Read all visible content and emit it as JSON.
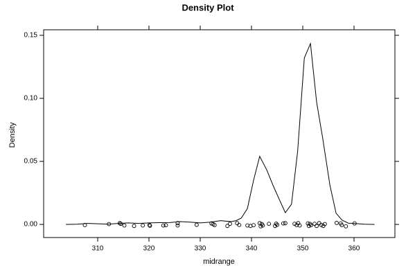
{
  "chart_data": {
    "type": "density",
    "title": "Density Plot",
    "x_label": "midrange",
    "y_label": "Density",
    "color": "#000000",
    "xlim": [
      299.46,
      367.97
    ],
    "ylim": [
      -0.0104,
      0.1544
    ],
    "xticks": [
      310,
      320,
      330,
      340,
      350,
      360
    ],
    "yticks": [
      {
        "value": 0,
        "label": "0.00"
      },
      0.05,
      {
        "value": 0.1,
        "label": "0.10"
      },
      0.15
    ],
    "line": {
      "x": [
        303.8,
        306,
        308,
        310,
        312,
        314,
        316,
        318,
        320,
        322,
        324,
        326,
        328,
        330,
        332,
        334,
        336,
        337,
        338,
        339.2,
        340.4,
        341.6,
        343,
        344.2,
        345.4,
        346.6,
        347.8,
        349,
        350.3,
        351.5,
        352.7,
        353.9,
        355.3,
        356.5,
        357.7,
        358.9,
        360,
        362,
        364
      ],
      "y": [
        0,
        0.0002,
        0.0008,
        0.0005,
        0.0002,
        0.0008,
        0.0012,
        0.0008,
        0.0012,
        0.0014,
        0.0015,
        0.0022,
        0.0018,
        0.0012,
        0.0018,
        0.003,
        0.0022,
        0.003,
        0.005,
        0.0126,
        0.035,
        0.054,
        0.043,
        0.031,
        0.02,
        0.0093,
        0.016,
        0.058,
        0.132,
        0.1435,
        0.097,
        0.068,
        0.031,
        0.0088,
        0.0033,
        0.001,
        0.0008,
        0.0002,
        0
      ]
    },
    "points": {
      "x": [
        307.5,
        312.2,
        314.3,
        314.5,
        315.2,
        317.1,
        318.8,
        320.1,
        320.2,
        322.8,
        323.3,
        325.6,
        325.6,
        329.3,
        332.2,
        332.5,
        332.8,
        335.3,
        335.8,
        337.2,
        337.6,
        339.2,
        339.8,
        340.4,
        341.6,
        341.8,
        342.0,
        342.2,
        343.4,
        344.6,
        344.8,
        345.0,
        346.2,
        346.6,
        348.4,
        348.8,
        349.1,
        349.4,
        351.0,
        351.2,
        351.4,
        351.6,
        352.3,
        352.7,
        353.2,
        353.6,
        354.0,
        354.3,
        356.6,
        357.4,
        357.6,
        358.4,
        360.1
      ],
      "y": [
        -0.0005,
        0.0003,
        0.001,
        0.0005,
        -0.0008,
        -0.0012,
        -0.0008,
        -0.0005,
        -0.001,
        -0.0008,
        -0.0006,
        0.001,
        -0.0008,
        -0.0003,
        0.0008,
        0.0002,
        -0.0005,
        -0.0012,
        0.0005,
        0.001,
        -0.0004,
        -0.0008,
        -0.0012,
        -0.0006,
        0.001,
        -0.0015,
        0.0003,
        -0.0008,
        0.0005,
        -0.0012,
        0.0006,
        -0.0003,
        0.0008,
        0.001,
        0.0005,
        -0.0005,
        0.001,
        -0.0008,
        0.0008,
        -0.0012,
        0.0004,
        -0.0006,
        0.0005,
        -0.0012,
        0.001,
        -0.0004,
        -0.0012,
        0.0003,
        0.0012,
        0.0008,
        -0.0005,
        -0.0015,
        0.0008
      ]
    }
  }
}
